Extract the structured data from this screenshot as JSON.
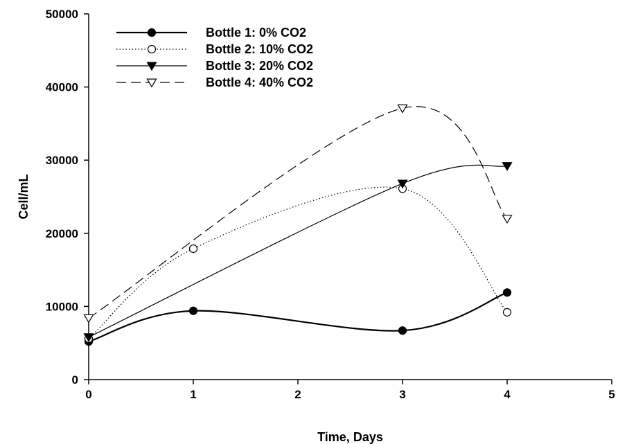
{
  "chart_data": {
    "type": "line",
    "xlabel": "Time, Days",
    "ylabel": "Cell/mL",
    "xlim": [
      0,
      5
    ],
    "ylim": [
      0,
      50000
    ],
    "xticks": [
      0,
      1,
      2,
      3,
      4,
      5
    ],
    "yticks": [
      0,
      10000,
      20000,
      30000,
      40000,
      50000
    ],
    "grid": false,
    "legend_position": "top-left",
    "series": [
      {
        "name": "Bottle 1: 0% CO2",
        "marker": "filled-circle",
        "line_style": "solid-thick",
        "x": [
          0,
          1,
          3,
          4
        ],
        "y": [
          5200,
          9400,
          6700,
          11900
        ]
      },
      {
        "name": "Bottle 2: 10% CO2",
        "marker": "open-circle",
        "line_style": "dotted",
        "x": [
          0,
          1,
          3,
          4
        ],
        "y": [
          5600,
          17900,
          26100,
          9200
        ]
      },
      {
        "name": "Bottle 3: 20% CO2",
        "marker": "filled-triangle-down",
        "line_style": "solid-thin",
        "x": [
          0,
          3,
          4
        ],
        "y": [
          5800,
          26800,
          29200
        ]
      },
      {
        "name": "Bottle 4: 40% CO2",
        "marker": "open-triangle-down",
        "line_style": "dashed",
        "x": [
          0,
          3,
          4
        ],
        "y": [
          8400,
          37100,
          22000
        ]
      }
    ]
  }
}
